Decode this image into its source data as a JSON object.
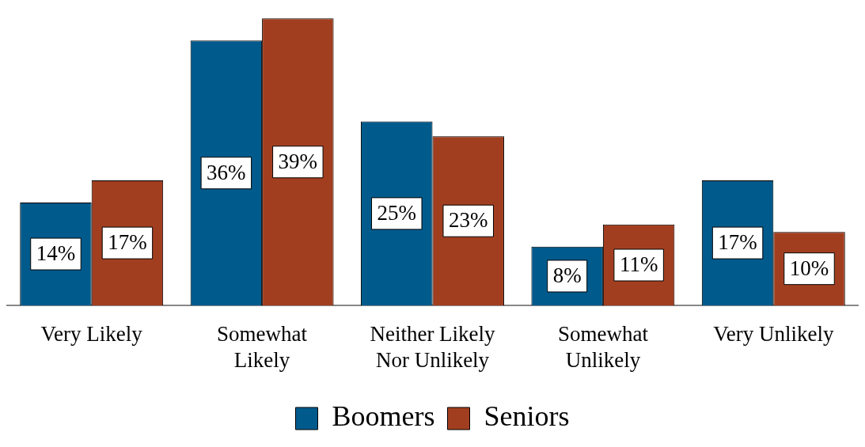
{
  "chart_data": {
    "type": "bar",
    "categories": [
      "Very Likely",
      "Somewhat Likely",
      "Neither Likely Nor Unlikely",
      "Somewhat Unlikely",
      "Very Unlikely"
    ],
    "series": [
      {
        "name": "Boomers",
        "color": "#005a8c",
        "values": [
          14,
          36,
          25,
          8,
          17
        ],
        "value_labels": [
          "14%",
          "36%",
          "25%",
          "8%",
          "17%"
        ]
      },
      {
        "name": "Seniors",
        "color": "#a23e20",
        "values": [
          17,
          39,
          23,
          11,
          10
        ],
        "value_labels": [
          "17%",
          "39%",
          "23%",
          "11%",
          "10%"
        ]
      }
    ],
    "legend": "bottom",
    "grid": false
  }
}
